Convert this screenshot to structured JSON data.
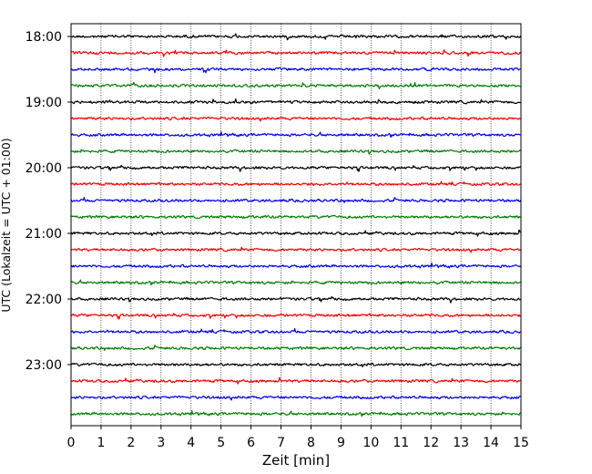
{
  "chart_data": {
    "type": "line",
    "title": "",
    "xlabel": "Zeit  [min]",
    "ylabel": "UTC (Lokalzeit = UTC + 01:00)",
    "xlim": [
      0,
      15
    ],
    "x_ticks": [
      "0",
      "1",
      "2",
      "3",
      "4",
      "5",
      "6",
      "7",
      "8",
      "9",
      "10",
      "11",
      "12",
      "13",
      "14",
      "15"
    ],
    "y_ticks": [
      "18:00",
      "19:00",
      "20:00",
      "21:00",
      "22:00",
      "23:00"
    ],
    "grid": "vertical-dotted",
    "line_colors": [
      "#000000",
      "#ff0000",
      "#0000ff",
      "#008000"
    ],
    "traces": [
      {
        "start": "18:00"
      },
      {
        "start": "18:15"
      },
      {
        "start": "18:30"
      },
      {
        "start": "18:45"
      },
      {
        "start": "19:00"
      },
      {
        "start": "19:15"
      },
      {
        "start": "19:30"
      },
      {
        "start": "19:45"
      },
      {
        "start": "20:00"
      },
      {
        "start": "20:15"
      },
      {
        "start": "20:30"
      },
      {
        "start": "20:45"
      },
      {
        "start": "21:00"
      },
      {
        "start": "21:15"
      },
      {
        "start": "21:30"
      },
      {
        "start": "21:45"
      },
      {
        "start": "22:00"
      },
      {
        "start": "22:15"
      },
      {
        "start": "22:30"
      },
      {
        "start": "22:45"
      },
      {
        "start": "23:00"
      },
      {
        "start": "23:15"
      },
      {
        "start": "23:30"
      },
      {
        "start": "23:45"
      }
    ]
  }
}
